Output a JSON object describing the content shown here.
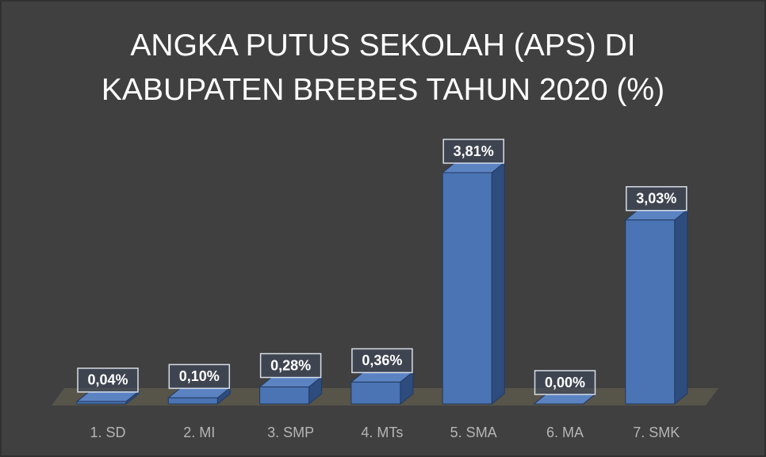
{
  "chart_data": {
    "type": "bar3d",
    "title": "ANGKA PUTUS SEKOLAH (APS) DI KABUPATEN BREBES TAHUN 2020 (%)",
    "categories": [
      "1. SD",
      "2. MI",
      "3. SMP",
      "4. MTs",
      "5. SMA",
      "6. MA",
      "7. SMK"
    ],
    "values": [
      0.04,
      0.1,
      0.28,
      0.36,
      3.81,
      0.0,
      3.03
    ],
    "value_labels": [
      "0,04%",
      "0,10%",
      "0,28%",
      "0,36%",
      "3,81%",
      "0,00%",
      "3,03%"
    ],
    "color": "#4a74b4"
  }
}
